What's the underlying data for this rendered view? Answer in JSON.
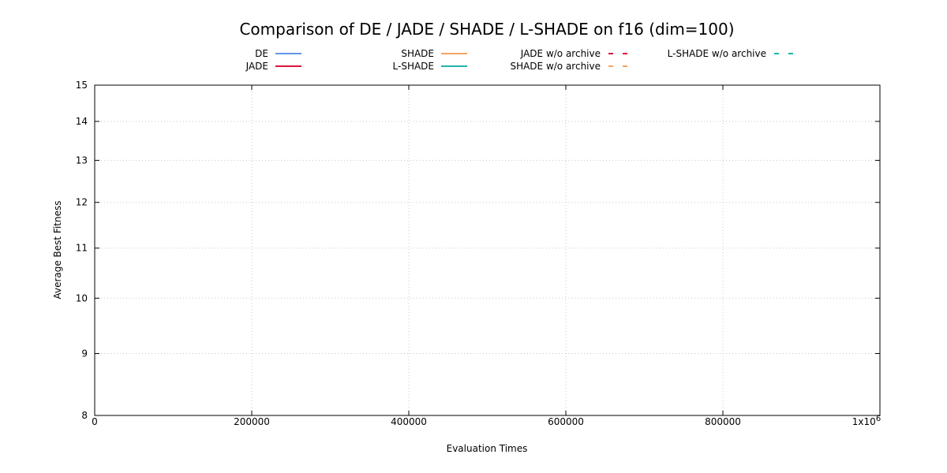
{
  "chart_data": {
    "type": "line",
    "title": "Comparison of DE / JADE / SHADE / L-SHADE on f16 (dim=100)",
    "xlabel": "Evaluation Times",
    "ylabel": "Average Best Fitness",
    "y_scale": "log",
    "xlim": [
      0,
      1000000
    ],
    "ylim": [
      8,
      15
    ],
    "x_ticks": [
      {
        "value": 0,
        "label": "0"
      },
      {
        "value": 200000,
        "label": "200000"
      },
      {
        "value": 400000,
        "label": "400000"
      },
      {
        "value": 600000,
        "label": "600000"
      },
      {
        "value": 800000,
        "label": "800000"
      },
      {
        "value": 1000000,
        "label": "1x10",
        "sup": "6"
      }
    ],
    "y_ticks": [
      {
        "value": 8,
        "label": "8"
      },
      {
        "value": 9,
        "label": "9"
      },
      {
        "value": 10,
        "label": "10"
      },
      {
        "value": 11,
        "label": "11"
      },
      {
        "value": 12,
        "label": "12"
      },
      {
        "value": 13,
        "label": "13"
      },
      {
        "value": 14,
        "label": "14"
      },
      {
        "value": 15,
        "label": "15"
      }
    ],
    "grid": true,
    "legend_position": "top",
    "series": [
      {
        "name": "DE",
        "color": "#6495ed",
        "dash": "solid",
        "values": []
      },
      {
        "name": "JADE",
        "color": "#dc143c",
        "dash": "solid",
        "values": []
      },
      {
        "name": "SHADE",
        "color": "#f4a460",
        "dash": "solid",
        "values": []
      },
      {
        "name": "L-SHADE",
        "color": "#20b2aa",
        "dash": "solid",
        "values": []
      },
      {
        "name": "JADE w/o archive",
        "color": "#dc143c",
        "dash": "dashed",
        "values": []
      },
      {
        "name": "SHADE w/o archive",
        "color": "#f4a460",
        "dash": "dashed",
        "values": []
      },
      {
        "name": "L-SHADE w/o archive",
        "color": "#20b2aa",
        "dash": "dashed",
        "values": []
      }
    ]
  }
}
